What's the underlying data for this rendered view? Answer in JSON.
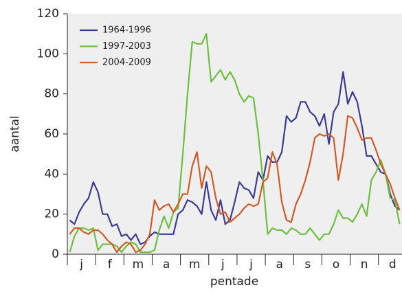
{
  "chart_data": {
    "type": "line",
    "x_label": "pentade",
    "y_label": "aantal",
    "x": [
      1,
      2,
      3,
      4,
      5,
      6,
      7,
      8,
      9,
      10,
      11,
      12,
      13,
      14,
      15,
      16,
      17,
      18,
      19,
      20,
      21,
      22,
      23,
      24,
      25,
      26,
      27,
      28,
      29,
      30,
      31,
      32,
      33,
      34,
      35,
      36,
      37,
      38,
      39,
      40,
      41,
      42,
      43,
      44,
      45,
      46,
      47,
      48,
      49,
      50,
      51,
      52,
      53,
      54,
      55,
      56,
      57,
      58,
      59,
      60,
      61,
      62,
      63,
      64,
      65,
      66,
      67,
      68,
      69,
      70,
      71
    ],
    "xlim": [
      0.5,
      71.5
    ],
    "xticks": [
      {
        "value": 3.5,
        "label": "j"
      },
      {
        "value": 9.5,
        "label": "f"
      },
      {
        "value": 15.5,
        "label": "m"
      },
      {
        "value": 21.5,
        "label": "a"
      },
      {
        "value": 27.5,
        "label": "m"
      },
      {
        "value": 33.5,
        "label": "j"
      },
      {
        "value": 39.5,
        "label": "j"
      },
      {
        "value": 45.5,
        "label": "a"
      },
      {
        "value": 51.5,
        "label": "s"
      },
      {
        "value": 57.5,
        "label": "o"
      },
      {
        "value": 63.5,
        "label": "n"
      },
      {
        "value": 69.5,
        "label": "d"
      }
    ],
    "ylim": [
      0,
      120
    ],
    "yticks": [
      0,
      20,
      40,
      60,
      80,
      100,
      120
    ],
    "legend": "top-left",
    "series": [
      {
        "name": "1964-1996",
        "color": "#3b3b8f",
        "values": [
          17,
          15,
          21,
          25,
          28,
          36,
          31,
          20,
          20,
          14,
          15,
          9,
          10,
          7,
          10,
          5,
          6,
          9,
          11,
          10,
          10,
          10,
          10,
          20,
          22,
          27,
          26,
          24,
          20,
          36,
          22,
          17,
          27,
          15,
          17,
          26,
          36,
          33,
          32,
          28,
          41,
          37,
          49,
          46,
          46,
          51,
          69,
          66,
          68,
          76,
          76,
          71,
          69,
          64,
          70,
          55,
          71,
          75,
          91,
          75,
          81,
          76,
          64,
          49,
          49,
          45,
          41,
          40,
          30,
          24,
          22
        ]
      },
      {
        "name": "1997-2003",
        "color": "#6cbf3f",
        "values": [
          1,
          9,
          13,
          13,
          12,
          13,
          2,
          5,
          5,
          5,
          4,
          1,
          4,
          6,
          5,
          1,
          1,
          1,
          2,
          12,
          19,
          13,
          21,
          23,
          50,
          80,
          106,
          105,
          105,
          110,
          86,
          89,
          92,
          87,
          91,
          87,
          80,
          76,
          79,
          78,
          60,
          37,
          10,
          13,
          12,
          12,
          10,
          13,
          12,
          10,
          10,
          13,
          10,
          7,
          10,
          10,
          15,
          22,
          18,
          18,
          16,
          20,
          25,
          19,
          37,
          41,
          47,
          40,
          28,
          27,
          15
        ]
      },
      {
        "name": "2004-2009",
        "color": "#d05a28",
        "values": [
          10,
          13,
          13,
          11,
          10,
          12,
          12,
          10,
          7,
          5,
          1,
          4,
          6,
          5,
          1,
          2,
          5,
          10,
          27,
          22,
          24,
          25,
          21,
          25,
          30,
          30,
          44,
          51,
          33,
          44,
          41,
          28,
          20,
          21,
          16,
          18,
          20,
          23,
          25,
          24,
          25,
          36,
          38,
          51,
          45,
          26,
          17,
          16,
          25,
          30,
          37,
          46,
          58,
          60,
          59,
          60,
          58,
          37,
          50,
          69,
          68,
          63,
          57,
          58,
          58,
          52,
          45,
          40,
          35,
          28,
          22
        ]
      }
    ]
  }
}
